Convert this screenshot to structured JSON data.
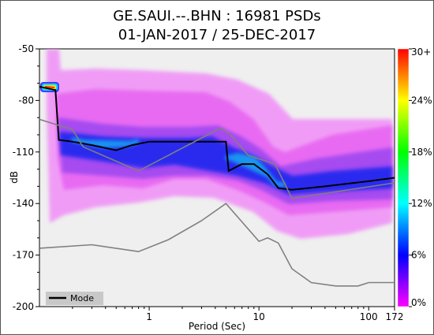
{
  "chart_data": {
    "type": "heatmap",
    "title": "GE.SAUI.--.BHN : 16981 PSDs",
    "subtitle": "01-JAN-2017 / 25-DEC-2017",
    "xlabel": "Period (Sec)",
    "ylabel": "dB",
    "x_scale": "log",
    "xlim": [
      0.1,
      172
    ],
    "ylim": [
      -200,
      -50
    ],
    "x_ticks": [
      {
        "value": 1,
        "label": "1"
      },
      {
        "value": 10,
        "label": "10"
      },
      {
        "value": 100,
        "label": "100"
      },
      {
        "value": 172,
        "label": "172"
      }
    ],
    "y_ticks": [
      {
        "value": -50,
        "label": "-50"
      },
      {
        "value": -80,
        "label": "-80"
      },
      {
        "value": -110,
        "label": "-110"
      },
      {
        "value": -140,
        "label": "-140"
      },
      {
        "value": -170,
        "label": "-170"
      },
      {
        "value": -200,
        "label": "-200"
      }
    ],
    "colorbar": {
      "ticks": [
        "0%",
        "6%",
        "12%",
        "18%",
        "24%",
        "30+"
      ],
      "colors": [
        "#ff00ff",
        "#0000ff",
        "#00ffff",
        "#00ff00",
        "#ffff00",
        "#ff0000"
      ]
    },
    "legend": {
      "entries": [
        {
          "name": "Mode",
          "color": "#000000"
        }
      ],
      "placement": "bottom-left"
    },
    "grid": false,
    "series": [
      {
        "name": "Mode",
        "color": "#000000",
        "points": [
          [
            0.1,
            -72
          ],
          [
            0.14,
            -74
          ],
          [
            0.15,
            -103
          ],
          [
            0.2,
            -104
          ],
          [
            0.3,
            -106
          ],
          [
            0.5,
            -109
          ],
          [
            0.7,
            -106
          ],
          [
            1,
            -104
          ],
          [
            2,
            -104
          ],
          [
            5,
            -104
          ],
          [
            5.3,
            -121
          ],
          [
            7,
            -117
          ],
          [
            9,
            -117
          ],
          [
            12,
            -123
          ],
          [
            15,
            -131
          ],
          [
            20,
            -132
          ],
          [
            40,
            -130
          ],
          [
            100,
            -127
          ],
          [
            172,
            -125
          ]
        ]
      },
      {
        "name": "",
        "color": "#808080",
        "points": [
          [
            0.1,
            -91
          ],
          [
            0.2,
            -97
          ],
          [
            0.25,
            -107
          ],
          [
            0.8,
            -121
          ],
          [
            4.5,
            -96
          ],
          [
            5.5,
            -100
          ],
          [
            8,
            -112
          ],
          [
            14,
            -117
          ],
          [
            20,
            -137
          ],
          [
            172,
            -128
          ]
        ]
      },
      {
        "name": "",
        "color": "#808080",
        "points": [
          [
            0.1,
            -166
          ],
          [
            0.3,
            -164
          ],
          [
            0.8,
            -168
          ],
          [
            1.5,
            -161
          ],
          [
            3,
            -150
          ],
          [
            5,
            -140
          ],
          [
            10,
            -162
          ],
          [
            12,
            -160
          ],
          [
            15,
            -163
          ],
          [
            20,
            -178
          ],
          [
            30,
            -186
          ],
          [
            50,
            -188
          ],
          [
            80,
            -188
          ],
          [
            100,
            -186
          ],
          [
            172,
            -186
          ]
        ]
      }
    ]
  }
}
